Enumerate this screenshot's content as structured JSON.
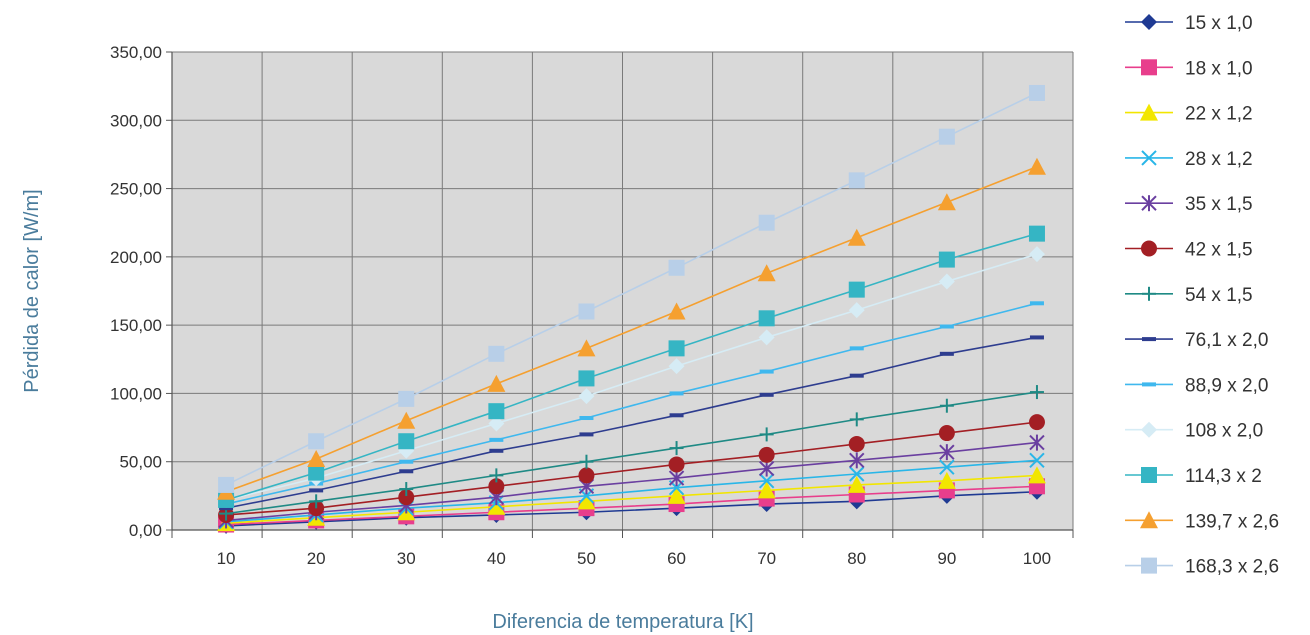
{
  "chart_data": {
    "type": "line",
    "title": "",
    "xlabel": "Diferencia de temperatura [K]",
    "ylabel": "Pérdida de calor [W/m]",
    "x": [
      10,
      20,
      30,
      40,
      50,
      60,
      70,
      80,
      90,
      100
    ],
    "x_ticks": [
      "10",
      "20",
      "30",
      "40",
      "50",
      "60",
      "70",
      "80",
      "90",
      "100"
    ],
    "y_ticks": [
      "0,00",
      "50,00",
      "100,00",
      "150,00",
      "200,00",
      "250,00",
      "300,00",
      "350,00"
    ],
    "ylim": [
      0,
      350
    ],
    "grid": true,
    "legend_position": "right",
    "plot_background": "#d9d9d9",
    "series": [
      {
        "name": "15 x 1,0",
        "color": "#1f3a93",
        "marker": "diamond",
        "values": [
          3,
          6,
          9,
          11,
          13,
          16,
          19,
          21,
          25,
          28
        ]
      },
      {
        "name": "18 x 1,0",
        "color": "#e83e8c",
        "marker": "square",
        "values": [
          4,
          7,
          10,
          13,
          16,
          19,
          23,
          26,
          29,
          32
        ]
      },
      {
        "name": "22 x 1,2",
        "color": "#f2e600",
        "marker": "triangle",
        "values": [
          5,
          9,
          13,
          17,
          21,
          25,
          29,
          33,
          36,
          40
        ]
      },
      {
        "name": "28 x 1,2",
        "color": "#29b6e8",
        "marker": "x",
        "values": [
          6,
          11,
          16,
          20,
          25,
          31,
          36,
          41,
          46,
          51
        ]
      },
      {
        "name": "35 x 1,5",
        "color": "#6a3fa0",
        "marker": "star",
        "values": [
          7,
          13,
          18,
          24,
          32,
          38,
          45,
          51,
          57,
          64
        ]
      },
      {
        "name": "42 x 1,5",
        "color": "#a31f24",
        "marker": "circle",
        "values": [
          11,
          16,
          24,
          32,
          40,
          48,
          55,
          63,
          71,
          79
        ]
      },
      {
        "name": "54 x 1,5",
        "color": "#1f8a85",
        "marker": "plus",
        "values": [
          12,
          21,
          30,
          40,
          50,
          60,
          70,
          81,
          91,
          101
        ]
      },
      {
        "name": "76,1 x 2,0",
        "color": "#2e3d8f",
        "marker": "dash",
        "values": [
          16,
          29,
          43,
          58,
          70,
          84,
          99,
          113,
          129,
          141
        ]
      },
      {
        "name": "88,9 x 2,0",
        "color": "#3fb8ee",
        "marker": "dash",
        "values": [
          19,
          34,
          50,
          66,
          82,
          100,
          116,
          133,
          149,
          166
        ]
      },
      {
        "name": "108 x 2,0",
        "color": "#d6ecf5",
        "marker": "diamond",
        "values": [
          22,
          38,
          58,
          78,
          98,
          120,
          141,
          161,
          182,
          202
        ]
      },
      {
        "name": "114,3 x 2",
        "color": "#35b5c4",
        "marker": "square",
        "values": [
          22,
          42,
          65,
          87,
          111,
          133,
          155,
          176,
          198,
          217
        ]
      },
      {
        "name": "139,7 x 2,6",
        "color": "#f5a030",
        "marker": "triangle",
        "values": [
          28,
          52,
          80,
          107,
          133,
          160,
          188,
          214,
          240,
          266
        ]
      },
      {
        "name": "168,3 x 2,6",
        "color": "#b8cfe8",
        "marker": "square",
        "values": [
          33,
          65,
          96,
          129,
          160,
          192,
          225,
          256,
          288,
          320
        ]
      }
    ]
  }
}
